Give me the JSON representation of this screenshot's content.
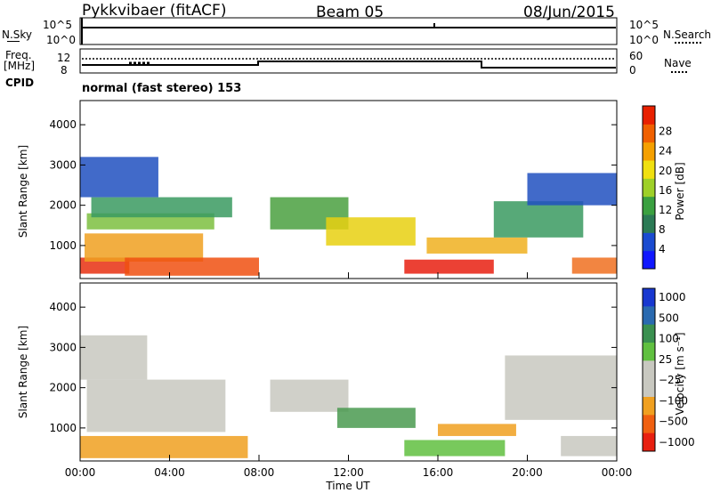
{
  "header": {
    "station": "Pykkvibaer (fitACF)",
    "beam": "Beam 05",
    "date": "08/Jun/2015"
  },
  "top_panels": {
    "nsky_label": "N.Sky",
    "nsky_ticks": [
      "10^5",
      "10^0"
    ],
    "nsearch_label": "N.Search",
    "nsearch_ticks": [
      "10^5",
      "10^0"
    ],
    "freq_label_1": "Freq.",
    "freq_label_2": "[MHz]",
    "freq_ticks": [
      "12",
      "8"
    ],
    "nave_label": "Nave",
    "nave_ticks": [
      "60",
      "0"
    ],
    "cpid_label": "CPID",
    "cpid_text": "normal (fast stereo) 153"
  },
  "chart_data": [
    {
      "type": "heatmap",
      "name": "power",
      "ylabel": "Slant Range [km]",
      "yticks": [
        "1000",
        "2000",
        "3000",
        "4000"
      ],
      "ylim": [
        180,
        4600
      ],
      "colorbar_label": "Power [dB]",
      "colorbar_ticks": [
        "4",
        "8",
        "12",
        "16",
        "20",
        "24",
        "28"
      ],
      "colorbar_colors": [
        "#1018ff",
        "#1a4bd0",
        "#2b7a55",
        "#3aa040",
        "#9ed028",
        "#f0e010",
        "#f5a000",
        "#f06000",
        "#e82000"
      ],
      "bands": [
        {
          "t0": 0.0,
          "t1": 2.2,
          "r0": 300,
          "r1": 700,
          "c": "#e83010"
        },
        {
          "t0": 0.2,
          "t1": 5.5,
          "r0": 600,
          "r1": 1300,
          "c": "#f0a020"
        },
        {
          "t0": 0.3,
          "t1": 6.0,
          "r0": 1400,
          "r1": 1800,
          "c": "#7cc040"
        },
        {
          "t0": 0.5,
          "t1": 6.8,
          "r0": 1700,
          "r1": 2200,
          "c": "#3a9a60"
        },
        {
          "t0": 0.0,
          "t1": 3.5,
          "r0": 2200,
          "r1": 3200,
          "c": "#2050c0"
        },
        {
          "t0": 2.0,
          "t1": 8.0,
          "r0": 250,
          "r1": 700,
          "c": "#f05010"
        },
        {
          "t0": 8.5,
          "t1": 12.0,
          "r0": 1400,
          "r1": 2200,
          "c": "#4aa040"
        },
        {
          "t0": 11.0,
          "t1": 15.0,
          "r0": 1000,
          "r1": 1700,
          "c": "#e8d010"
        },
        {
          "t0": 14.5,
          "t1": 18.5,
          "r0": 300,
          "r1": 650,
          "c": "#e82010"
        },
        {
          "t0": 15.5,
          "t1": 20.0,
          "r0": 800,
          "r1": 1200,
          "c": "#f0b020"
        },
        {
          "t0": 18.5,
          "t1": 22.5,
          "r0": 1200,
          "r1": 2100,
          "c": "#3a9a60"
        },
        {
          "t0": 20.0,
          "t1": 24.0,
          "r0": 2000,
          "r1": 2800,
          "c": "#2050c0"
        },
        {
          "t0": 22.0,
          "t1": 24.0,
          "r0": 300,
          "r1": 700,
          "c": "#f07020"
        }
      ]
    },
    {
      "type": "heatmap",
      "name": "velocity",
      "ylabel": "Slant Range [km]",
      "yticks": [
        "1000",
        "2000",
        "3000",
        "4000"
      ],
      "ylim": [
        180,
        4600
      ],
      "xlabel": "Time UT",
      "xticks": [
        "00:00",
        "04:00",
        "08:00",
        "12:00",
        "16:00",
        "20:00",
        "00:00"
      ],
      "xlim": [
        0,
        24
      ],
      "colorbar_label": "Velocity [m s⁻¹]",
      "colorbar_ticks": [
        "1000",
        "500",
        "100",
        "25",
        "−25",
        "−100",
        "−500",
        "−1000"
      ],
      "colorbar_colors": [
        "#1838d0",
        "#2a6ab0",
        "#3a9050",
        "#60c040",
        "#c8c8c0",
        "#c8c8c0",
        "#f0a020",
        "#f06010",
        "#e82010"
      ],
      "bands": [
        {
          "t0": 0.0,
          "t1": 7.5,
          "r0": 250,
          "r1": 800,
          "c": "#f0a020"
        },
        {
          "t0": 0.3,
          "t1": 6.5,
          "r0": 900,
          "r1": 2200,
          "c": "#c8c8c0"
        },
        {
          "t0": 0.0,
          "t1": 3.0,
          "r0": 2200,
          "r1": 3300,
          "c": "#c8c8c0"
        },
        {
          "t0": 8.5,
          "t1": 12.0,
          "r0": 1400,
          "r1": 2200,
          "c": "#c8c8c0"
        },
        {
          "t0": 11.5,
          "t1": 15.0,
          "r0": 1000,
          "r1": 1500,
          "c": "#4a9a50"
        },
        {
          "t0": 14.5,
          "t1": 19.0,
          "r0": 300,
          "r1": 700,
          "c": "#60c040"
        },
        {
          "t0": 16.0,
          "t1": 19.5,
          "r0": 800,
          "r1": 1100,
          "c": "#f0a020"
        },
        {
          "t0": 19.0,
          "t1": 24.0,
          "r0": 1200,
          "r1": 2800,
          "c": "#c8c8c0"
        },
        {
          "t0": 21.5,
          "t1": 24.0,
          "r0": 300,
          "r1": 800,
          "c": "#c8c8c0"
        }
      ]
    }
  ]
}
